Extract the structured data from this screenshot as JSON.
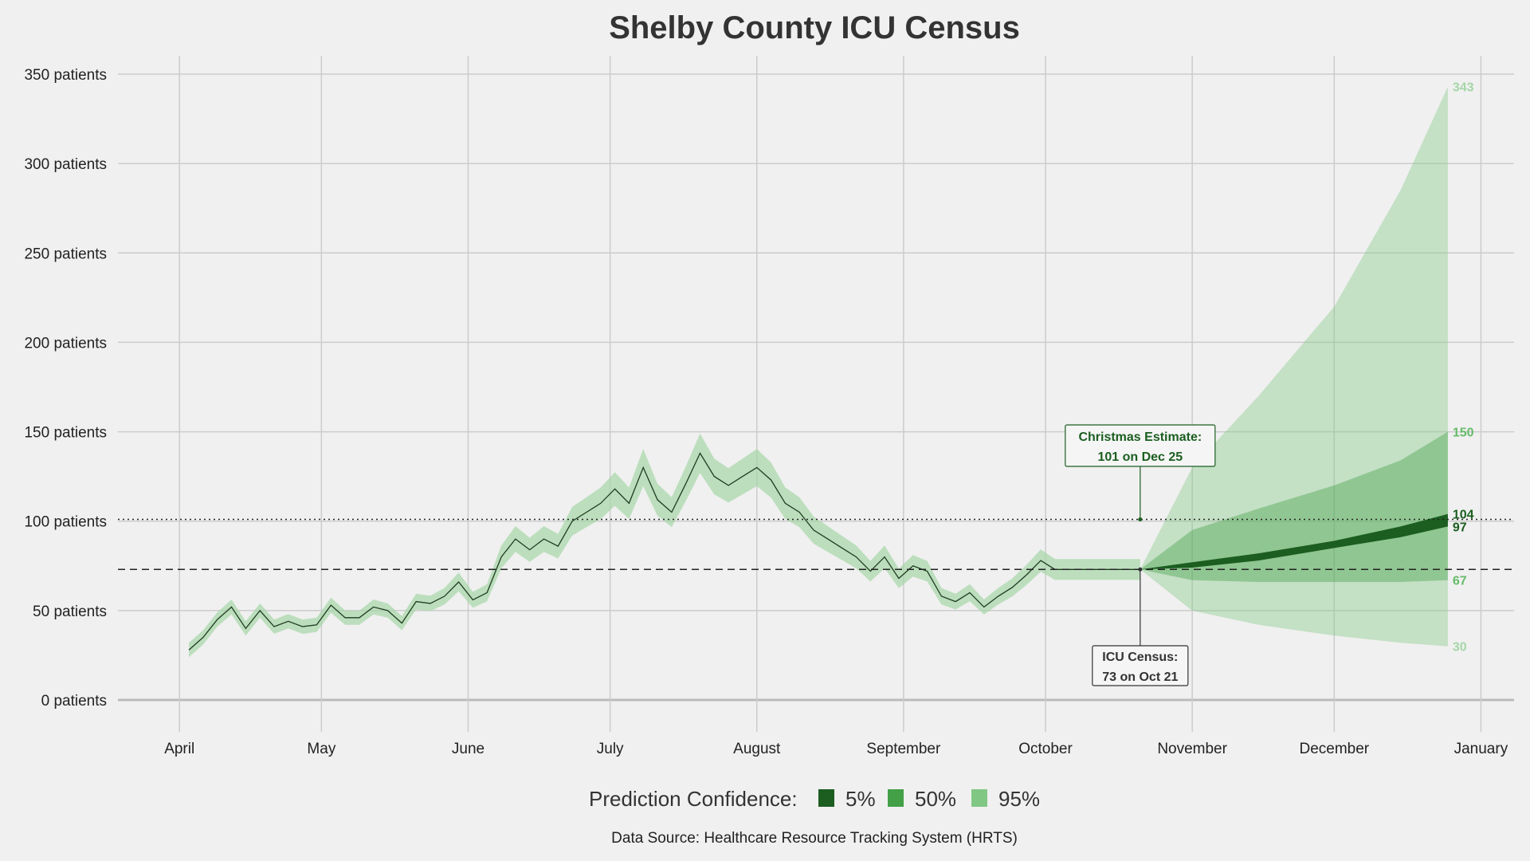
{
  "chart_data": {
    "type": "area",
    "title": "Shelby County ICU Census",
    "xlabel": "",
    "ylabel": "",
    "ylim": [
      -12,
      350
    ],
    "y_ticks": [
      0,
      50,
      100,
      150,
      200,
      250,
      300,
      350
    ],
    "y_tick_suffix": " patients",
    "x_ticks": [
      {
        "date": "2020-04-01",
        "label": "April"
      },
      {
        "date": "2020-05-01",
        "label": "May"
      },
      {
        "date": "2020-06-01",
        "label": "June"
      },
      {
        "date": "2020-07-01",
        "label": "July"
      },
      {
        "date": "2020-08-01",
        "label": "August"
      },
      {
        "date": "2020-09-01",
        "label": "September"
      },
      {
        "date": "2020-10-01",
        "label": "October"
      },
      {
        "date": "2020-11-01",
        "label": "November"
      },
      {
        "date": "2020-12-01",
        "label": "December"
      },
      {
        "date": "2021-01-01",
        "label": "January"
      }
    ],
    "xlim": [
      "2020-03-19",
      "2021-01-08"
    ],
    "grid": true,
    "colors": {
      "background": "#f0f0f0",
      "grid": "#cccccc",
      "band_5": "#1b5e20",
      "band_50": "#43a047",
      "band_95": "#81c784",
      "history_line": "#1f3d1f",
      "history_band": "#a5d6a7"
    },
    "history": {
      "x": [
        "2020-04-03",
        "2020-04-06",
        "2020-04-09",
        "2020-04-12",
        "2020-04-15",
        "2020-04-18",
        "2020-04-21",
        "2020-04-24",
        "2020-04-27",
        "2020-04-30",
        "2020-05-03",
        "2020-05-06",
        "2020-05-09",
        "2020-05-12",
        "2020-05-15",
        "2020-05-18",
        "2020-05-21",
        "2020-05-24",
        "2020-05-27",
        "2020-05-30",
        "2020-06-02",
        "2020-06-05",
        "2020-06-08",
        "2020-06-11",
        "2020-06-14",
        "2020-06-17",
        "2020-06-20",
        "2020-06-23",
        "2020-06-26",
        "2020-06-29",
        "2020-07-02",
        "2020-07-05",
        "2020-07-08",
        "2020-07-11",
        "2020-07-14",
        "2020-07-17",
        "2020-07-20",
        "2020-07-23",
        "2020-07-26",
        "2020-07-29",
        "2020-08-01",
        "2020-08-04",
        "2020-08-07",
        "2020-08-10",
        "2020-08-13",
        "2020-08-16",
        "2020-08-19",
        "2020-08-22",
        "2020-08-25",
        "2020-08-28",
        "2020-08-31",
        "2020-09-03",
        "2020-09-06",
        "2020-09-09",
        "2020-09-12",
        "2020-09-15",
        "2020-09-18",
        "2020-09-21",
        "2020-09-24",
        "2020-09-27",
        "2020-09-30",
        "2020-10-03",
        "2020-10-06",
        "2020-10-09",
        "2020-10-12",
        "2020-10-15",
        "2020-10-18",
        "2020-10-21"
      ],
      "values": [
        28,
        35,
        45,
        52,
        40,
        50,
        41,
        44,
        41,
        42,
        53,
        46,
        46,
        52,
        50,
        43,
        55,
        54,
        58,
        66,
        56,
        60,
        80,
        90,
        84,
        90,
        86,
        100,
        105,
        110,
        118,
        110,
        130,
        112,
        105,
        121,
        138,
        125,
        120,
        125,
        130,
        123,
        110,
        105,
        95,
        90,
        85,
        80,
        72,
        80,
        68,
        75,
        72,
        58,
        55,
        60,
        52,
        58,
        63,
        70,
        78,
        73,
        73,
        73,
        73,
        73,
        73,
        73
      ]
    },
    "forecast": {
      "x": [
        "2020-10-21",
        "2020-11-01",
        "2020-11-15",
        "2020-12-01",
        "2020-12-15",
        "2020-12-25"
      ],
      "median": [
        73,
        76,
        80,
        87,
        94,
        101
      ],
      "ci5_lower": [
        73,
        74,
        78,
        85,
        91,
        97
      ],
      "ci5_upper": [
        73,
        77,
        82,
        89,
        97,
        104
      ],
      "ci50_lower": [
        73,
        67,
        66,
        66,
        66,
        67
      ],
      "ci50_upper": [
        73,
        95,
        107,
        120,
        134,
        150
      ],
      "ci95_lower": [
        73,
        50,
        42,
        36,
        32,
        30
      ],
      "ci95_upper": [
        73,
        130,
        170,
        220,
        285,
        343
      ]
    },
    "end_labels": [
      {
        "value": 343,
        "text": "343",
        "color": "#a5d6a7"
      },
      {
        "value": 150,
        "text": "150",
        "color": "#66bb6a"
      },
      {
        "value": 104,
        "text": "104",
        "color": "#1b5e20"
      },
      {
        "value": 97,
        "text": "97",
        "color": "#1b5e20"
      },
      {
        "value": 67,
        "text": "67",
        "color": "#66bb6a"
      },
      {
        "value": 30,
        "text": "30",
        "color": "#a5d6a7"
      }
    ],
    "reference_lines": [
      {
        "value": 101,
        "style": "dotted"
      },
      {
        "value": 73,
        "style": "dashed"
      }
    ],
    "annotations": [
      {
        "name": "christmas-estimate",
        "line1": "Christmas Estimate:",
        "line2": "101 on Dec 25",
        "date": "2020-10-21",
        "value": 101,
        "color": "#1b5e20"
      },
      {
        "name": "icu-census",
        "line1": "ICU Census:",
        "line2": "73 on Oct 21",
        "date": "2020-10-21",
        "value": 73,
        "color": "#333333"
      }
    ],
    "legend": {
      "placement": "bottom",
      "title": "Prediction Confidence:",
      "items": [
        {
          "label": "5%",
          "color": "#1b5e20"
        },
        {
          "label": "50%",
          "color": "#43a047"
        },
        {
          "label": "95%",
          "color": "#81c784"
        }
      ]
    },
    "source": "Data Source: Healthcare Resource Tracking System (HRTS)"
  }
}
